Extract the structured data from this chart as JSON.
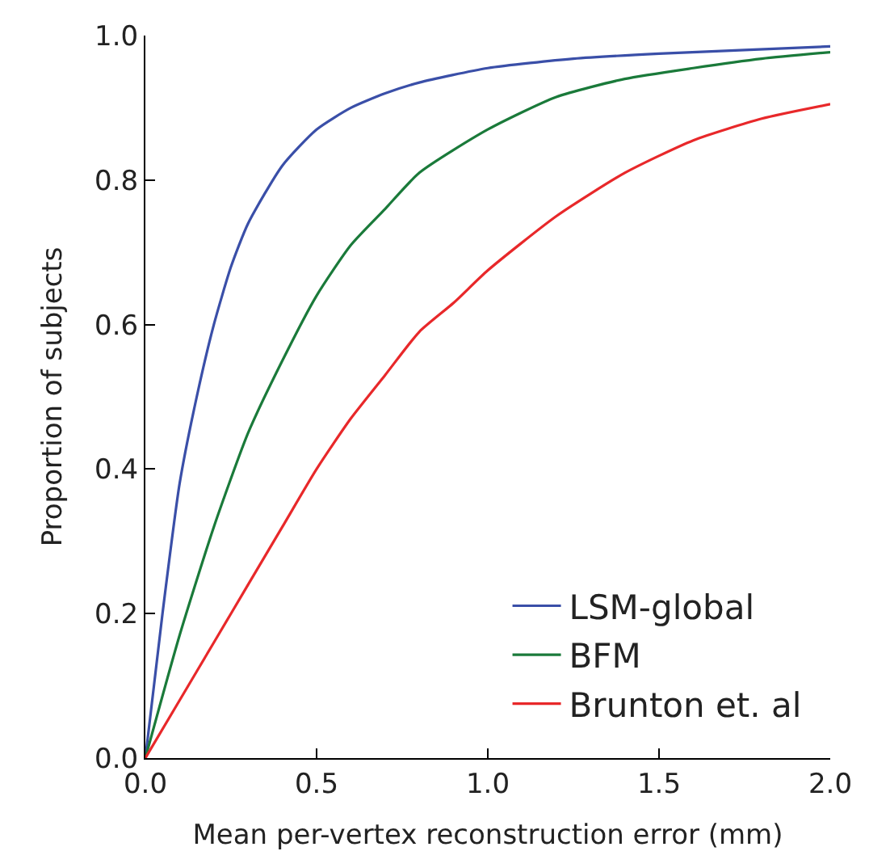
{
  "chart_data": {
    "type": "line",
    "xlabel": "Mean per-vertex reconstruction error (mm)",
    "ylabel": "Proportion of subjects",
    "xlim": [
      0,
      2
    ],
    "xticks": [
      {
        "value": 0,
        "label": "0.0"
      },
      {
        "value": 0.5,
        "label": "0.5"
      },
      {
        "value": 1,
        "label": "1.0"
      },
      {
        "value": 1.5,
        "label": "1.5"
      },
      {
        "value": 2,
        "label": "2.0"
      }
    ],
    "ylim": [
      0,
      1
    ],
    "yticks": [
      {
        "value": 0,
        "label": "0.0"
      },
      {
        "value": 0.2,
        "label": "0.2"
      },
      {
        "value": 0.4,
        "label": "0.4"
      },
      {
        "value": 0.6,
        "label": "0.6"
      },
      {
        "value": 0.8,
        "label": "0.8"
      },
      {
        "value": 1,
        "label": "1.0"
      }
    ],
    "legend": "bottom right",
    "marker": "none",
    "line_style": "solid",
    "series": [
      {
        "name": "LSM-global",
        "color": "#3a4fa8",
        "x": [
          0,
          0.05,
          0.1,
          0.15,
          0.2,
          0.25,
          0.3,
          0.4,
          0.5,
          0.6,
          0.7,
          0.8,
          1.0,
          1.25,
          1.5,
          1.75,
          2.0
        ],
        "values": [
          0,
          0.2,
          0.38,
          0.5,
          0.6,
          0.68,
          0.74,
          0.82,
          0.87,
          0.9,
          0.92,
          0.935,
          0.955,
          0.968,
          0.975,
          0.98,
          0.985
        ]
      },
      {
        "name": "BFM",
        "color": "#1a7a3a",
        "x": [
          0,
          0.1,
          0.2,
          0.3,
          0.4,
          0.5,
          0.6,
          0.7,
          0.8,
          1.0,
          1.2,
          1.4,
          1.6,
          1.8,
          2.0
        ],
        "values": [
          0,
          0.17,
          0.32,
          0.45,
          0.55,
          0.64,
          0.71,
          0.76,
          0.81,
          0.87,
          0.915,
          0.94,
          0.955,
          0.968,
          0.977
        ]
      },
      {
        "name": "Brunton et. al",
        "color": "#e8282a",
        "x": [
          0,
          0.1,
          0.2,
          0.3,
          0.4,
          0.5,
          0.6,
          0.7,
          0.8,
          0.9,
          1.0,
          1.2,
          1.4,
          1.6,
          1.8,
          2.0
        ],
        "values": [
          0,
          0.08,
          0.16,
          0.24,
          0.32,
          0.4,
          0.47,
          0.53,
          0.59,
          0.63,
          0.675,
          0.75,
          0.81,
          0.855,
          0.885,
          0.905
        ]
      }
    ]
  }
}
